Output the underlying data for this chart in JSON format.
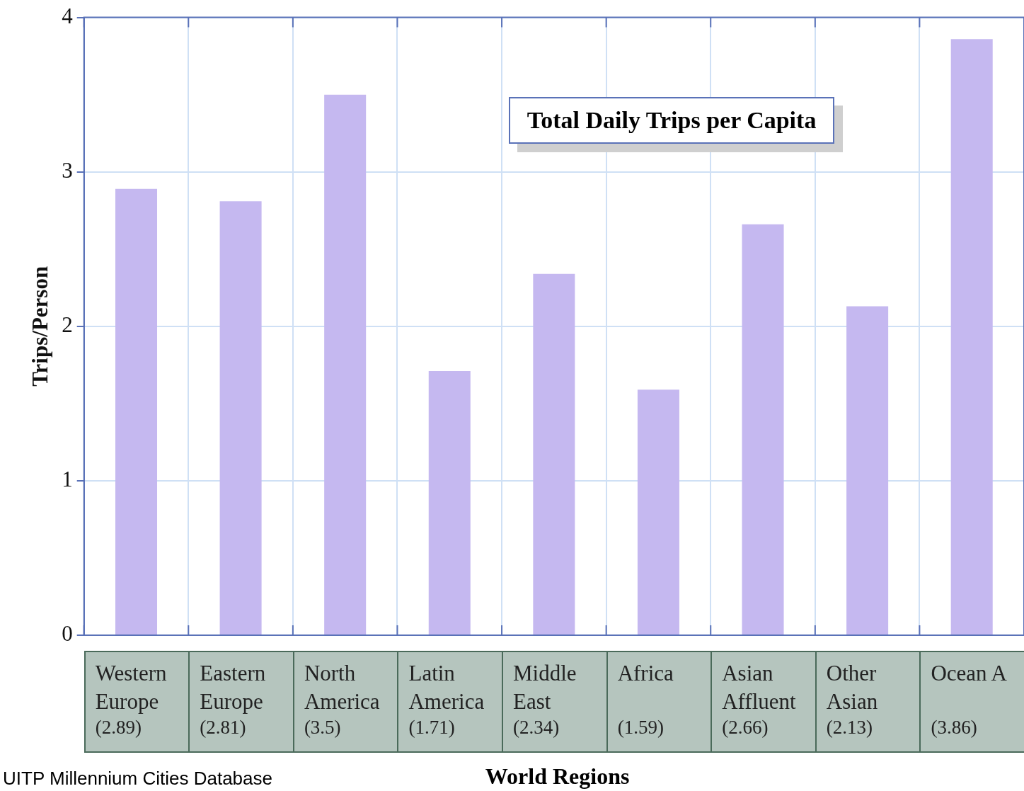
{
  "chart_data": {
    "type": "bar",
    "title": "Total Daily Trips per Capita",
    "xlabel": "World Regions",
    "ylabel": "Trips/Person",
    "categories": [
      "Western Europe",
      "Eastern Europe",
      "North America",
      "Latin America",
      "Middle East",
      "Africa",
      "Asian Affluent",
      "Other Asian",
      "Ocean A"
    ],
    "values": [
      2.89,
      2.81,
      3.5,
      1.71,
      2.34,
      1.59,
      2.66,
      2.13,
      3.86
    ],
    "value_labels": [
      "(2.89)",
      "(2.81)",
      "(3.5)",
      "(1.71)",
      "(2.34)",
      "(1.59)",
      "(2.66)",
      "(2.13)",
      "(3.86)"
    ],
    "color": "#c5b8f0",
    "ylim": [
      0,
      4
    ],
    "yticks": [
      0,
      1,
      2,
      3,
      4
    ],
    "grid": true,
    "legend": false,
    "annotations": [
      "UITP Millennium Cities Database"
    ]
  }
}
